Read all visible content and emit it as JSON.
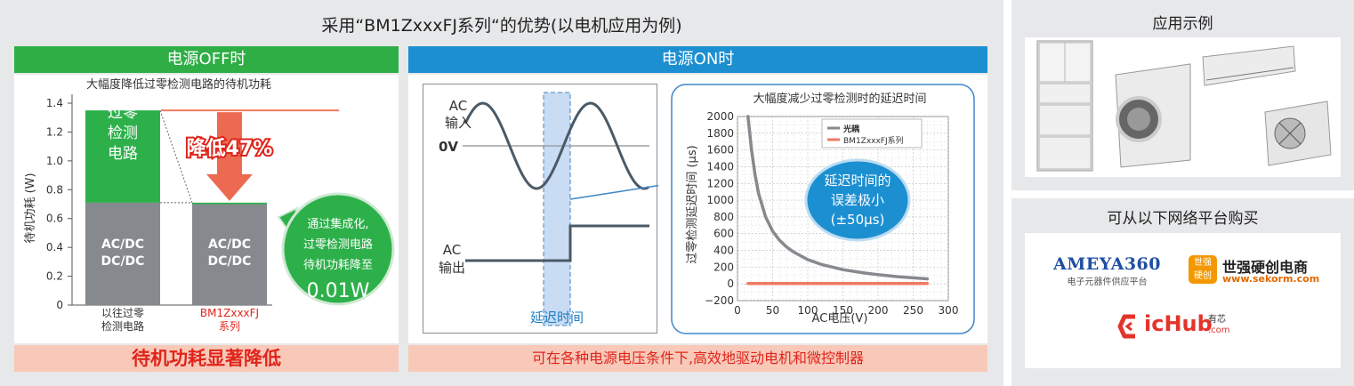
{
  "main": {
    "title": "采用“BM1ZxxxFJ系列“的优势(以电机应用为例)",
    "off_header": "电源OFF时",
    "on_header": "电源ON时",
    "off_footer": "待机功耗显著降低",
    "on_footer": "可在各种电源电压条件下,高效地驱动电机和微控制器"
  },
  "off_chart": {
    "subtitle": "大幅度降低过零检测电路的待机功耗",
    "reduction_label": "降低47%",
    "bubble_lines": [
      "通过集成化,",
      "过零检测电路",
      "待机功耗降至"
    ],
    "bubble_value": "0.01W",
    "colors": {
      "zc_green": "#2db04a",
      "acdc_gray": "#86898d",
      "red_line": "#f07a63",
      "arrow": "#ed6a52"
    }
  },
  "waveform": {
    "ac_in_label": [
      "AC",
      "输入"
    ],
    "zero_label": "0V",
    "ac_out_label": [
      "AC",
      "输出"
    ],
    "delay_label": "延迟时间"
  },
  "bubble2": {
    "lines": [
      "延迟时间的",
      "误差极小",
      "(±50μs)"
    ]
  },
  "chart_data": [
    {
      "type": "bar",
      "title": "大幅度降低过零检测电路的待机功耗",
      "ylabel": "待机功耗 (W)",
      "ylim": [
        0,
        1.4
      ],
      "yticks": [
        "0",
        "0.2",
        "0.4",
        "0.6",
        "0.8",
        "1.0",
        "1.2",
        "1.4"
      ],
      "categories": [
        [
          "以往过零",
          "检测电路"
        ],
        [
          "BM1ZxxxFJ",
          "系列"
        ]
      ],
      "series": [
        {
          "name": "AC/DC DC/DC",
          "values": [
            0.71,
            0.7
          ]
        },
        {
          "name": "过零检测电路",
          "values": [
            0.64,
            0.01
          ]
        }
      ],
      "segment_labels": {
        "acdc": [
          "AC/DC",
          "DC/DC"
        ],
        "zc": [
          "过零",
          "检测",
          "电路"
        ]
      },
      "annotation": "降低47%"
    },
    {
      "type": "line",
      "title": "大幅度减少过零检测时的延迟时间",
      "xlabel": "AC电压(V)",
      "ylabel": "过零检测延迟时间 (μs)",
      "xlim": [
        0,
        300
      ],
      "ylim": [
        -200,
        2000
      ],
      "xticks": [
        "0",
        "50",
        "100",
        "150",
        "200",
        "250",
        "300"
      ],
      "yticks": [
        "−200",
        "0",
        "200",
        "400",
        "600",
        "800",
        "1000",
        "1200",
        "1400",
        "1600",
        "1800",
        "2000"
      ],
      "grid": true,
      "legend": "top-left",
      "series": [
        {
          "name": "光耦",
          "color": "#86898d",
          "x": [
            15,
            20,
            25,
            30,
            40,
            50,
            60,
            70,
            80,
            100,
            120,
            150,
            180,
            200,
            230,
            270
          ],
          "y": [
            2000,
            1600,
            1300,
            1080,
            800,
            630,
            520,
            440,
            380,
            290,
            230,
            170,
            130,
            110,
            85,
            60
          ]
        },
        {
          "name": "BM1ZxxxFJ系列",
          "color": "#f07a63",
          "x": [
            15,
            270
          ],
          "y": [
            5,
            5
          ]
        }
      ]
    }
  ],
  "side": {
    "examples_title": "应用示例",
    "buy_title": "可从以下网络平台购买",
    "ameya": {
      "name": "AMEYA360",
      "sub": "电子元器件供应平台"
    },
    "sekorm": {
      "badge": [
        "世强",
        "硬创"
      ],
      "name": "世强硬创电商",
      "url": "www.sekorm.com"
    },
    "ichub": {
      "name": "icHub",
      "badge": [
        "有芯",
        ".com"
      ]
    }
  }
}
